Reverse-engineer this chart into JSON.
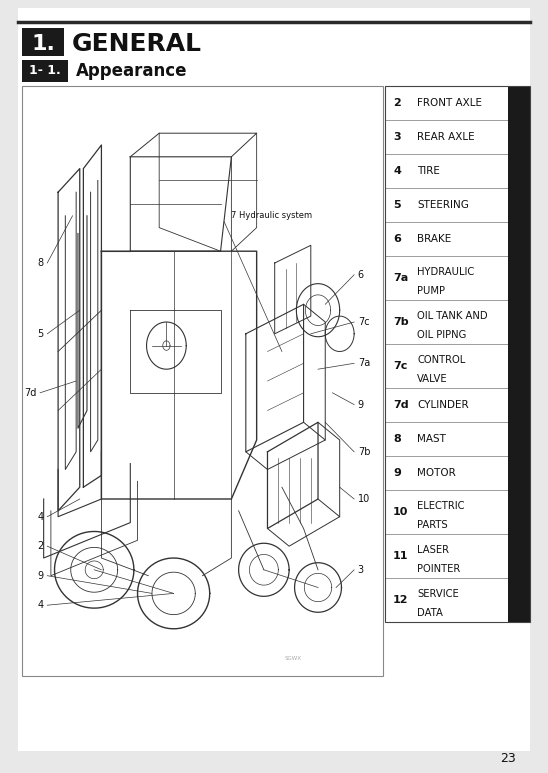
{
  "page_bg": "#e8e8e8",
  "content_bg": "#ffffff",
  "title_text": "GENERAL",
  "title_number": "1.",
  "subtitle_number": "1- 1.",
  "subtitle_text": "Appearance",
  "sidebar_items": [
    {
      "num": "2",
      "label": "FRONT AXLE",
      "lines": 1,
      "bold_num": false
    },
    {
      "num": "3",
      "label": "REAR AXLE",
      "lines": 1,
      "bold_num": false
    },
    {
      "num": "4",
      "label": "TIRE",
      "lines": 1,
      "bold_num": false
    },
    {
      "num": "5",
      "label": "STEERING",
      "lines": 1,
      "bold_num": false
    },
    {
      "num": "6",
      "label": "BRAKE",
      "lines": 1,
      "bold_num": false
    },
    {
      "num": "7a",
      "label": "HYDRAULIC\nPUMP",
      "lines": 2,
      "bold_num": true
    },
    {
      "num": "7b",
      "label": "OIL TANK AND\nOIL PIPNG",
      "lines": 2,
      "bold_num": true
    },
    {
      "num": "7c",
      "label": "CONTROL\nVALVE",
      "lines": 2,
      "bold_num": true
    },
    {
      "num": "7d",
      "label": "CYLINDER",
      "lines": 1,
      "bold_num": true
    },
    {
      "num": "8",
      "label": "MAST",
      "lines": 1,
      "bold_num": false
    },
    {
      "num": "9",
      "label": "MOTOR",
      "lines": 1,
      "bold_num": false
    },
    {
      "num": "10",
      "label": "ELECTRIC\nPARTS",
      "lines": 2,
      "bold_num": true
    },
    {
      "num": "11",
      "label": "LASER\nPOINTER",
      "lines": 2,
      "bold_num": true
    },
    {
      "num": "12",
      "label": "SERVICE\nDATA",
      "lines": 2,
      "bold_num": true
    }
  ],
  "page_number": "23"
}
